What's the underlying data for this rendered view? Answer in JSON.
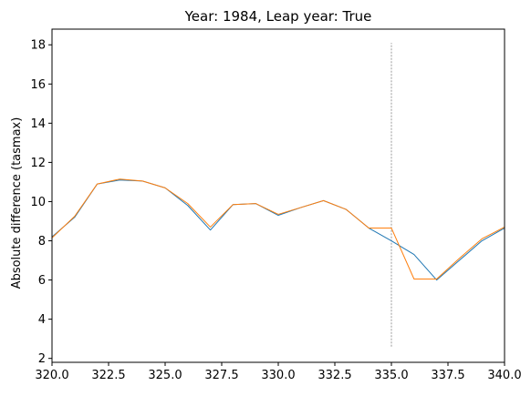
{
  "chart_data": {
    "type": "line",
    "title": "Year: 1984, Leap year: True",
    "xlabel": "",
    "ylabel": "Absolute difference (tasmax)",
    "xlim": [
      320,
      340
    ],
    "ylim": [
      1.8,
      18.8
    ],
    "xticks": [
      320,
      322.5,
      325,
      327.5,
      330,
      332.5,
      335,
      337.5,
      340
    ],
    "xtick_labels": [
      "320.0",
      "322.5",
      "325.0",
      "327.5",
      "330.0",
      "332.5",
      "335.0",
      "337.5",
      "340.0"
    ],
    "yticks": [
      2,
      4,
      6,
      8,
      10,
      12,
      14,
      16,
      18
    ],
    "ytick_labels": [
      "2",
      "4",
      "6",
      "8",
      "10",
      "12",
      "14",
      "16",
      "18"
    ],
    "grid": false,
    "legend": null,
    "series": [
      {
        "name": "series-1",
        "color": "#1f77b4",
        "x": [
          320,
          321,
          322,
          323,
          324,
          325,
          326,
          327,
          328,
          329,
          330,
          331,
          332,
          333,
          334,
          335,
          336,
          337,
          338,
          339,
          340
        ],
        "y": [
          8.2,
          9.2,
          10.9,
          11.1,
          11.05,
          10.7,
          9.8,
          8.55,
          9.85,
          9.9,
          9.3,
          9.7,
          10.05,
          9.6,
          8.65,
          8.0,
          7.3,
          6.0,
          7.0,
          8.0,
          8.65
        ]
      },
      {
        "name": "series-2",
        "color": "#ff7f0e",
        "x": [
          320,
          321,
          322,
          323,
          324,
          325,
          326,
          327,
          328,
          329,
          330,
          331,
          332,
          333,
          334,
          335,
          336,
          337,
          338,
          339,
          340
        ],
        "y": [
          8.15,
          9.25,
          10.9,
          11.15,
          11.05,
          10.7,
          9.9,
          8.7,
          9.85,
          9.9,
          9.35,
          9.7,
          10.05,
          9.6,
          8.65,
          8.65,
          6.05,
          6.05,
          7.1,
          8.1,
          8.7
        ]
      }
    ],
    "annotations": [
      {
        "type": "vline",
        "x": 335,
        "y_from": 2.6,
        "y_to": 18.1,
        "style": "dashed",
        "color": "#808080"
      }
    ]
  }
}
